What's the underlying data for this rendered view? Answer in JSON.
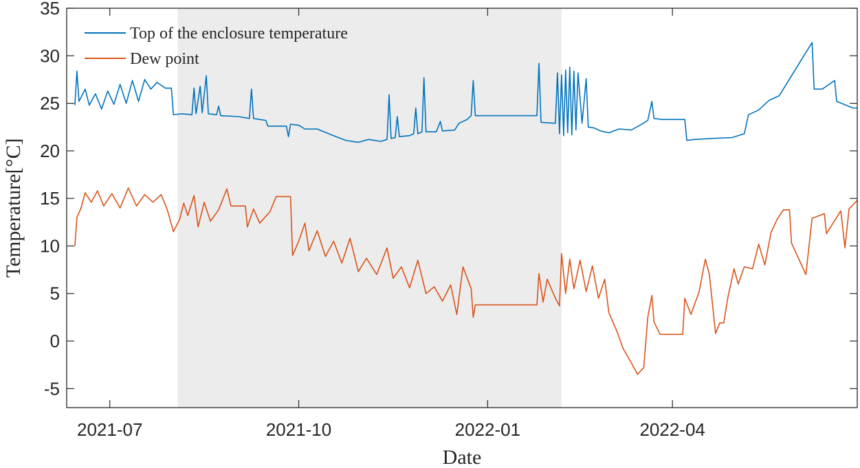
{
  "chart_data": {
    "type": "line",
    "title": "",
    "xlabel": "Date",
    "ylabel": "Temperature[°C]",
    "xlim": [
      "2021-06-10",
      "2022-06-30"
    ],
    "ylim": [
      -7,
      35
    ],
    "yticks": [
      -5,
      0,
      5,
      10,
      15,
      20,
      25,
      30,
      35
    ],
    "ytick_labels": [
      "-5",
      "0",
      "5",
      "10",
      "15",
      "20",
      "25",
      "30",
      "35"
    ],
    "xticks": [
      "2021-07-01",
      "2021-10-01",
      "2022-01-01",
      "2022-04-01"
    ],
    "xtick_labels": [
      "2021-07",
      "2021-10",
      "2022-01",
      "2022-04"
    ],
    "grid": false,
    "legend_position": "top-left",
    "shaded_region": {
      "x0": "2021-08-03",
      "x1": "2022-02-06",
      "color": "#ececec"
    },
    "series": [
      {
        "name": "Top of the enclosure temperature",
        "color": "#0072BD",
        "points": [
          [
            "2021-06-14",
            24.8
          ],
          [
            "2021-06-15",
            28.4
          ],
          [
            "2021-06-16",
            25.2
          ],
          [
            "2021-06-19",
            26.5
          ],
          [
            "2021-06-21",
            24.8
          ],
          [
            "2021-06-24",
            26.0
          ],
          [
            "2021-06-27",
            24.4
          ],
          [
            "2021-06-30",
            26.3
          ],
          [
            "2021-07-03",
            24.9
          ],
          [
            "2021-07-06",
            27.0
          ],
          [
            "2021-07-09",
            25.0
          ],
          [
            "2021-07-12",
            27.4
          ],
          [
            "2021-07-15",
            25.2
          ],
          [
            "2021-07-18",
            27.5
          ],
          [
            "2021-07-21",
            26.5
          ],
          [
            "2021-07-24",
            27.2
          ],
          [
            "2021-07-28",
            26.6
          ],
          [
            "2021-07-31",
            26.6
          ],
          [
            "2021-08-01",
            23.8
          ],
          [
            "2021-08-05",
            23.9
          ],
          [
            "2021-08-10",
            23.8
          ],
          [
            "2021-08-11",
            26.6
          ],
          [
            "2021-08-12",
            23.9
          ],
          [
            "2021-08-14",
            26.8
          ],
          [
            "2021-08-15",
            24.0
          ],
          [
            "2021-08-17",
            27.9
          ],
          [
            "2021-08-18",
            23.9
          ],
          [
            "2021-08-22",
            23.8
          ],
          [
            "2021-08-23",
            24.7
          ],
          [
            "2021-08-24",
            23.7
          ],
          [
            "2021-09-02",
            23.6
          ],
          [
            "2021-09-07",
            23.4
          ],
          [
            "2021-09-08",
            26.5
          ],
          [
            "2021-09-09",
            23.4
          ],
          [
            "2021-09-15",
            23.2
          ],
          [
            "2021-09-16",
            22.6
          ],
          [
            "2021-09-25",
            22.6
          ],
          [
            "2021-09-26",
            21.5
          ],
          [
            "2021-09-27",
            22.8
          ],
          [
            "2021-10-01",
            22.7
          ],
          [
            "2021-10-04",
            22.3
          ],
          [
            "2021-10-10",
            22.3
          ],
          [
            "2021-10-18",
            21.6
          ],
          [
            "2021-10-24",
            21.1
          ],
          [
            "2021-10-30",
            20.9
          ],
          [
            "2021-11-04",
            21.2
          ],
          [
            "2021-11-10",
            21.0
          ],
          [
            "2021-11-13",
            21.2
          ],
          [
            "2021-11-14",
            25.9
          ],
          [
            "2021-11-15",
            21.3
          ],
          [
            "2021-11-17",
            21.4
          ],
          [
            "2021-11-18",
            23.6
          ],
          [
            "2021-11-19",
            21.5
          ],
          [
            "2021-11-24",
            21.6
          ],
          [
            "2021-11-26",
            21.8
          ],
          [
            "2021-11-27",
            24.5
          ],
          [
            "2021-11-28",
            21.8
          ],
          [
            "2021-11-30",
            22.0
          ],
          [
            "2021-12-01",
            27.7
          ],
          [
            "2021-12-02",
            22.0
          ],
          [
            "2021-12-07",
            22.0
          ],
          [
            "2021-12-09",
            23.1
          ],
          [
            "2021-12-10",
            22.1
          ],
          [
            "2021-12-16",
            22.2
          ],
          [
            "2021-12-18",
            22.9
          ],
          [
            "2021-12-22",
            23.3
          ],
          [
            "2021-12-24",
            23.7
          ],
          [
            "2021-12-25",
            27.4
          ],
          [
            "2021-12-26",
            23.7
          ],
          [
            "2022-01-25",
            23.7
          ],
          [
            "2022-01-26",
            29.2
          ],
          [
            "2022-01-27",
            23.0
          ],
          [
            "2022-02-03",
            22.9
          ],
          [
            "2022-02-04",
            28.2
          ],
          [
            "2022-02-05",
            21.8
          ],
          [
            "2022-02-06",
            28.0
          ],
          [
            "2022-02-07",
            21.6
          ],
          [
            "2022-02-08",
            28.5
          ],
          [
            "2022-02-09",
            21.9
          ],
          [
            "2022-02-10",
            28.8
          ],
          [
            "2022-02-11",
            21.7
          ],
          [
            "2022-02-12",
            28.4
          ],
          [
            "2022-02-13",
            22.2
          ],
          [
            "2022-02-14",
            28.2
          ],
          [
            "2022-02-16",
            22.9
          ],
          [
            "2022-02-18",
            27.6
          ],
          [
            "2022-02-19",
            22.5
          ],
          [
            "2022-02-22",
            22.4
          ],
          [
            "2022-02-25",
            22.1
          ],
          [
            "2022-03-01",
            21.9
          ],
          [
            "2022-03-06",
            22.3
          ],
          [
            "2022-03-12",
            22.2
          ],
          [
            "2022-03-17",
            22.8
          ],
          [
            "2022-03-20",
            23.2
          ],
          [
            "2022-03-22",
            25.2
          ],
          [
            "2022-03-23",
            23.4
          ],
          [
            "2022-03-27",
            23.3
          ],
          [
            "2022-04-07",
            23.3
          ],
          [
            "2022-04-08",
            21.1
          ],
          [
            "2022-04-12",
            21.2
          ],
          [
            "2022-04-20",
            21.3
          ],
          [
            "2022-04-30",
            21.4
          ],
          [
            "2022-05-06",
            21.8
          ],
          [
            "2022-05-08",
            23.8
          ],
          [
            "2022-05-13",
            24.3
          ],
          [
            "2022-05-18",
            25.3
          ],
          [
            "2022-05-23",
            25.8
          ],
          [
            "2022-05-31",
            28.6
          ],
          [
            "2022-06-08",
            31.4
          ],
          [
            "2022-06-09",
            26.5
          ],
          [
            "2022-06-13",
            26.5
          ],
          [
            "2022-06-19",
            27.4
          ],
          [
            "2022-06-20",
            25.2
          ],
          [
            "2022-06-28",
            24.5
          ],
          [
            "2022-06-30",
            24.5
          ]
        ]
      },
      {
        "name": "Dew point",
        "color": "#D95319",
        "points": [
          [
            "2021-06-14",
            10.0
          ],
          [
            "2021-06-15",
            13.0
          ],
          [
            "2021-06-17",
            14.0
          ],
          [
            "2021-06-19",
            15.6
          ],
          [
            "2021-06-22",
            14.6
          ],
          [
            "2021-06-25",
            15.8
          ],
          [
            "2021-06-28",
            14.2
          ],
          [
            "2021-07-02",
            15.5
          ],
          [
            "2021-07-06",
            14.0
          ],
          [
            "2021-07-10",
            16.1
          ],
          [
            "2021-07-14",
            14.2
          ],
          [
            "2021-07-18",
            15.4
          ],
          [
            "2021-07-22",
            14.6
          ],
          [
            "2021-07-26",
            15.4
          ],
          [
            "2021-07-29",
            13.8
          ],
          [
            "2021-08-01",
            11.5
          ],
          [
            "2021-08-04",
            12.8
          ],
          [
            "2021-08-06",
            14.5
          ],
          [
            "2021-08-08",
            13.2
          ],
          [
            "2021-08-11",
            15.3
          ],
          [
            "2021-08-13",
            12.0
          ],
          [
            "2021-08-16",
            14.6
          ],
          [
            "2021-08-19",
            12.6
          ],
          [
            "2021-08-23",
            13.8
          ],
          [
            "2021-08-27",
            16.0
          ],
          [
            "2021-08-29",
            14.2
          ],
          [
            "2021-09-05",
            14.2
          ],
          [
            "2021-09-06",
            12.0
          ],
          [
            "2021-09-09",
            13.9
          ],
          [
            "2021-09-12",
            12.4
          ],
          [
            "2021-09-17",
            13.6
          ],
          [
            "2021-09-20",
            15.2
          ],
          [
            "2021-09-27",
            15.2
          ],
          [
            "2021-09-28",
            9.0
          ],
          [
            "2021-10-01",
            10.5
          ],
          [
            "2021-10-04",
            12.4
          ],
          [
            "2021-10-06",
            9.5
          ],
          [
            "2021-10-10",
            11.6
          ],
          [
            "2021-10-14",
            8.9
          ],
          [
            "2021-10-18",
            10.5
          ],
          [
            "2021-10-22",
            8.2
          ],
          [
            "2021-10-26",
            10.8
          ],
          [
            "2021-10-30",
            7.3
          ],
          [
            "2021-11-03",
            8.7
          ],
          [
            "2021-11-08",
            7.0
          ],
          [
            "2021-11-13",
            9.8
          ],
          [
            "2021-11-16",
            6.6
          ],
          [
            "2021-11-20",
            7.8
          ],
          [
            "2021-11-24",
            5.6
          ],
          [
            "2021-11-28",
            8.5
          ],
          [
            "2021-12-02",
            5.0
          ],
          [
            "2021-12-06",
            5.7
          ],
          [
            "2021-12-10",
            4.2
          ],
          [
            "2021-12-14",
            5.9
          ],
          [
            "2021-12-17",
            2.8
          ],
          [
            "2021-12-20",
            7.8
          ],
          [
            "2021-12-24",
            5.5
          ],
          [
            "2021-12-25",
            2.5
          ],
          [
            "2021-12-26",
            3.8
          ],
          [
            "2022-01-25",
            3.8
          ],
          [
            "2022-01-26",
            7.1
          ],
          [
            "2022-01-28",
            4.1
          ],
          [
            "2022-01-30",
            6.5
          ],
          [
            "2022-02-03",
            4.5
          ],
          [
            "2022-02-05",
            3.7
          ],
          [
            "2022-02-06",
            9.2
          ],
          [
            "2022-02-08",
            5.0
          ],
          [
            "2022-02-10",
            8.6
          ],
          [
            "2022-02-12",
            5.5
          ],
          [
            "2022-02-15",
            8.5
          ],
          [
            "2022-02-18",
            5.2
          ],
          [
            "2022-02-21",
            7.9
          ],
          [
            "2022-02-24",
            4.5
          ],
          [
            "2022-02-27",
            6.5
          ],
          [
            "2022-03-01",
            3.0
          ],
          [
            "2022-03-05",
            1.0
          ],
          [
            "2022-03-08",
            -0.8
          ],
          [
            "2022-03-12",
            -2.3
          ],
          [
            "2022-03-15",
            -3.5
          ],
          [
            "2022-03-18",
            -2.8
          ],
          [
            "2022-03-20",
            2.5
          ],
          [
            "2022-03-22",
            4.8
          ],
          [
            "2022-03-23",
            2.0
          ],
          [
            "2022-03-26",
            0.7
          ],
          [
            "2022-04-06",
            0.7
          ],
          [
            "2022-04-07",
            4.5
          ],
          [
            "2022-04-10",
            2.8
          ],
          [
            "2022-04-14",
            5.2
          ],
          [
            "2022-04-17",
            8.6
          ],
          [
            "2022-04-19",
            7.0
          ],
          [
            "2022-04-22",
            0.8
          ],
          [
            "2022-04-24",
            1.9
          ],
          [
            "2022-04-26",
            1.9
          ],
          [
            "2022-04-28",
            4.6
          ],
          [
            "2022-05-01",
            7.6
          ],
          [
            "2022-05-03",
            6.0
          ],
          [
            "2022-05-06",
            7.8
          ],
          [
            "2022-05-10",
            7.6
          ],
          [
            "2022-05-13",
            10.2
          ],
          [
            "2022-05-16",
            8.0
          ],
          [
            "2022-05-19",
            11.4
          ],
          [
            "2022-05-22",
            12.8
          ],
          [
            "2022-05-25",
            13.8
          ],
          [
            "2022-05-28",
            13.8
          ],
          [
            "2022-05-29",
            10.3
          ],
          [
            "2022-06-05",
            7.0
          ],
          [
            "2022-06-08",
            12.9
          ],
          [
            "2022-06-14",
            13.4
          ],
          [
            "2022-06-15",
            11.3
          ],
          [
            "2022-06-22",
            13.7
          ],
          [
            "2022-06-24",
            9.8
          ],
          [
            "2022-06-26",
            13.9
          ],
          [
            "2022-06-30",
            14.8
          ]
        ]
      }
    ]
  }
}
